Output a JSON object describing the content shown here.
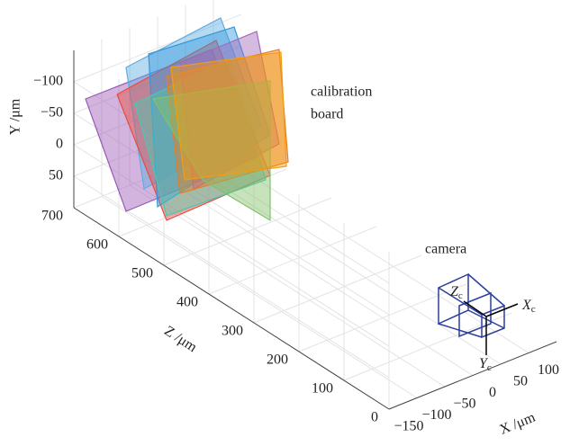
{
  "chart_data": {
    "type": "extrinsics3d",
    "xlabel": "X /μm",
    "ylabel": "Y /μm",
    "zlabel": "Z /μm",
    "xlim": [
      -150,
      150
    ],
    "ylim": [
      -150,
      100
    ],
    "zlim": [
      0,
      700
    ],
    "xticks": [
      {
        "value": -150,
        "label": "−150"
      },
      {
        "value": -100,
        "label": "−100"
      },
      {
        "value": -50,
        "label": "−50"
      },
      0,
      50,
      100
    ],
    "yticks": [
      {
        "value": -100,
        "label": "−100"
      },
      {
        "value": -50,
        "label": "−50"
      },
      0,
      50
    ],
    "zticks": [
      0,
      100,
      200,
      300,
      400,
      500,
      600,
      700
    ],
    "grid": true,
    "annotations": {
      "board": [
        "calibration",
        "board"
      ],
      "camera": "camera",
      "annotation_color": "#e8503a"
    },
    "camera_axes": [
      {
        "letter": "Z",
        "sub": "c"
      },
      {
        "letter": "X",
        "sub": "c"
      },
      {
        "letter": "Y",
        "sub": "c"
      }
    ],
    "camera_color": "#2b3f9e",
    "board_colors": [
      "#9b59b6",
      "#5dade2",
      "#e74c3c",
      "#3498db",
      "#48c9b0",
      "#a569bd",
      "#e67e22",
      "#82c06a",
      "#f39c12"
    ]
  }
}
